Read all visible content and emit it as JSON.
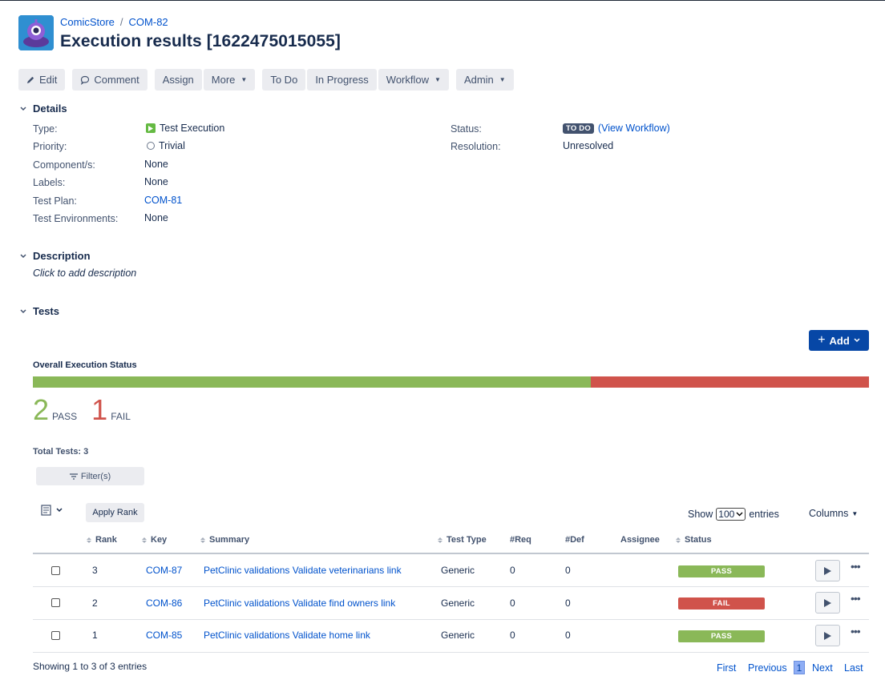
{
  "breadcrumb": {
    "project": "ComicStore",
    "separator": "/",
    "issue_key": "COM-82"
  },
  "title": "Execution results [1622475015055]",
  "toolbar": {
    "edit": "Edit",
    "comment": "Comment",
    "assign": "Assign",
    "more": "More",
    "todo": "To Do",
    "in_progress": "In Progress",
    "workflow": "Workflow",
    "admin": "Admin"
  },
  "details": {
    "heading": "Details",
    "type_label": "Type:",
    "type_value": "Test Execution",
    "priority_label": "Priority:",
    "priority_value": "Trivial",
    "components_label": "Component/s:",
    "components_value": "None",
    "labels_label": "Labels:",
    "labels_value": "None",
    "test_plan_label": "Test Plan:",
    "test_plan_value": "COM-81",
    "test_env_label": "Test Environments:",
    "test_env_value": "None",
    "status_label": "Status:",
    "status_value": "TO DO",
    "view_workflow": "(View Workflow)",
    "resolution_label": "Resolution:",
    "resolution_value": "Unresolved"
  },
  "description": {
    "heading": "Description",
    "placeholder": "Click to add description"
  },
  "tests": {
    "heading": "Tests",
    "add": "Add",
    "overall_title": "Overall Execution Status",
    "progress": {
      "pass_fraction": 0.667,
      "fail_fraction": 0.333,
      "pass_color": "#8ab858",
      "fail_color": "#d0534b"
    },
    "pass_count": "2",
    "pass_label": "PASS",
    "fail_count": "1",
    "fail_label": "FAIL",
    "total": "Total Tests: 3",
    "filter": "Filter(s)",
    "apply_rank": "Apply Rank",
    "show": "Show",
    "entries_value": "100",
    "entries": "entries",
    "columns": "Columns",
    "headers": {
      "rank": "Rank",
      "key": "Key",
      "summary": "Summary",
      "test_type": "Test Type",
      "req": "#Req",
      "def": "#Def",
      "assignee": "Assignee",
      "status": "Status"
    },
    "rows": [
      {
        "rank": "3",
        "key": "COM-87",
        "summary": "PetClinic validations Validate veterinarians link",
        "type": "Generic",
        "req": "0",
        "def": "0",
        "status": "PASS",
        "status_color": "#8ab858"
      },
      {
        "rank": "2",
        "key": "COM-86",
        "summary": "PetClinic validations Validate find owners link",
        "type": "Generic",
        "req": "0",
        "def": "0",
        "status": "FAIL",
        "status_color": "#d0534b"
      },
      {
        "rank": "1",
        "key": "COM-85",
        "summary": "PetClinic validations Validate home link",
        "type": "Generic",
        "req": "0",
        "def": "0",
        "status": "PASS",
        "status_color": "#8ab858"
      }
    ],
    "showing": "Showing 1 to 3 of 3 entries",
    "pager": {
      "first": "First",
      "previous": "Previous",
      "current": "1",
      "next": "Next",
      "last": "Last"
    }
  }
}
